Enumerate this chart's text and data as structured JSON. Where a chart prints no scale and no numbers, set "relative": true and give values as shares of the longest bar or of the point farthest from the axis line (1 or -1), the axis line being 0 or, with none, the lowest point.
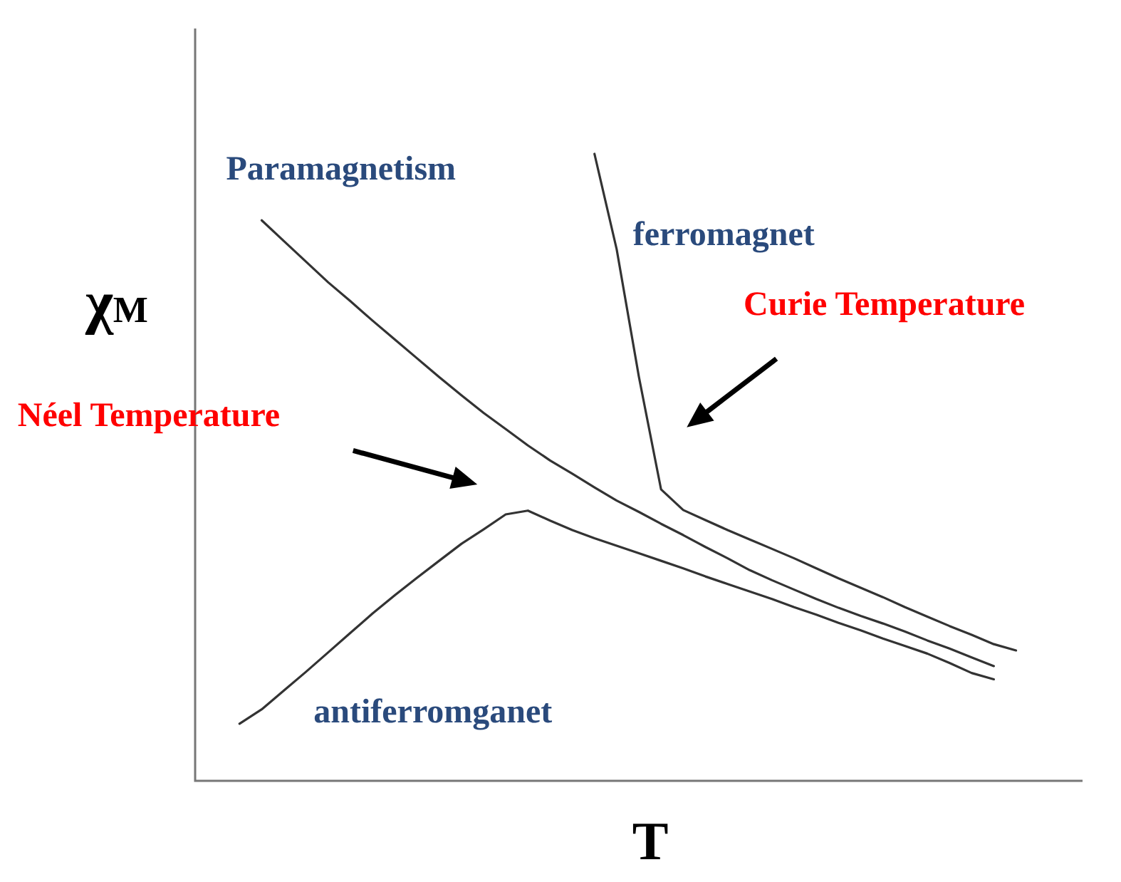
{
  "chart_data": {
    "type": "line",
    "relative": true,
    "xlabel": "T",
    "ylabel": "χ$_{M}$",
    "legend": false,
    "marker": "none",
    "line_style": "solid",
    "categories": [
      null,
      null,
      null,
      null,
      null,
      null,
      null,
      null,
      null,
      null,
      null,
      null,
      null,
      null,
      null,
      null,
      null,
      null,
      null,
      null,
      null,
      null,
      null,
      null,
      null,
      null,
      null,
      null,
      null,
      null,
      null,
      null,
      null,
      null,
      null,
      null,
      null,
      null,
      null,
      null,
      null
    ],
    "series": [
      {
        "name": "Paramagnetism",
        "color": "#333333",
        "values": [
          null,
          null,
          null,
          0.894,
          0.861,
          0.828,
          0.795,
          0.765,
          0.734,
          0.704,
          0.674,
          0.644,
          0.615,
          0.587,
          0.561,
          0.535,
          0.511,
          0.49,
          0.468,
          0.447,
          0.429,
          0.41,
          0.392,
          0.373,
          0.355,
          0.336,
          0.32,
          0.305,
          0.29,
          0.276,
          0.263,
          0.251,
          0.238,
          0.224,
          0.211,
          0.197,
          0.183,
          null,
          null,
          null,
          null
        ]
      },
      {
        "name": "ferromagnet",
        "color": "#333333",
        "values": [
          null,
          null,
          null,
          null,
          null,
          null,
          null,
          null,
          null,
          null,
          null,
          null,
          null,
          null,
          null,
          null,
          null,
          null,
          1,
          0.848,
          0.645,
          0.465,
          0.432,
          0.416,
          0.4,
          0.385,
          0.37,
          0.355,
          0.339,
          0.323,
          0.308,
          0.293,
          0.277,
          0.262,
          0.247,
          0.233,
          0.218,
          0.208,
          null,
          null,
          null
        ]
      },
      {
        "name": "antiferromganet",
        "color": "#333333",
        "values": [
          null,
          null,
          0.091,
          0.114,
          0.144,
          0.174,
          0.205,
          0.236,
          0.267,
          0.296,
          0.324,
          0.351,
          0.378,
          0.401,
          0.425,
          0.431,
          0.415,
          0.4,
          0.387,
          0.375,
          0.363,
          0.351,
          0.339,
          0.326,
          0.314,
          0.302,
          0.29,
          0.277,
          0.265,
          0.252,
          0.24,
          0.227,
          0.215,
          0.203,
          0.188,
          0.172,
          0.162,
          null,
          null,
          null,
          null
        ]
      }
    ],
    "annotations": [
      "Néel Temperature",
      "Curie Temperature"
    ]
  }
}
